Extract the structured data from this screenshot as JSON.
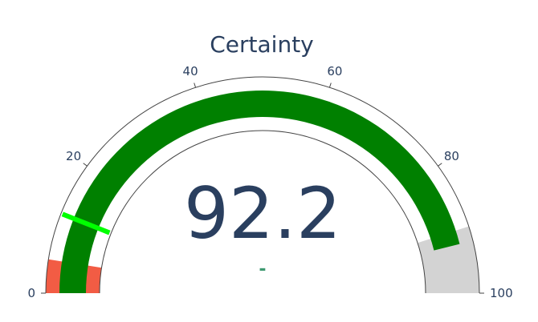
{
  "chart_data": {
    "type": "gauge",
    "title": "Certainty",
    "value": 92.2,
    "value_label": "92.2",
    "delta_label": "-",
    "axis": {
      "range": [
        0,
        100
      ],
      "ticks": [
        0,
        20,
        40,
        60,
        80,
        100
      ],
      "tick_labels": [
        "0",
        "20",
        "40",
        "60",
        "80",
        "100"
      ]
    },
    "steps": [
      {
        "range": [
          0,
          5
        ],
        "color": "#f25c44"
      },
      {
        "range": [
          90,
          100
        ],
        "color": "#d3d3d3"
      }
    ],
    "threshold": {
      "value": 12,
      "color": "#00ff00"
    },
    "colors": {
      "bar": "#008000",
      "text": "#2a3f5f",
      "delta": "#3d9970",
      "outline": "#444444"
    }
  }
}
